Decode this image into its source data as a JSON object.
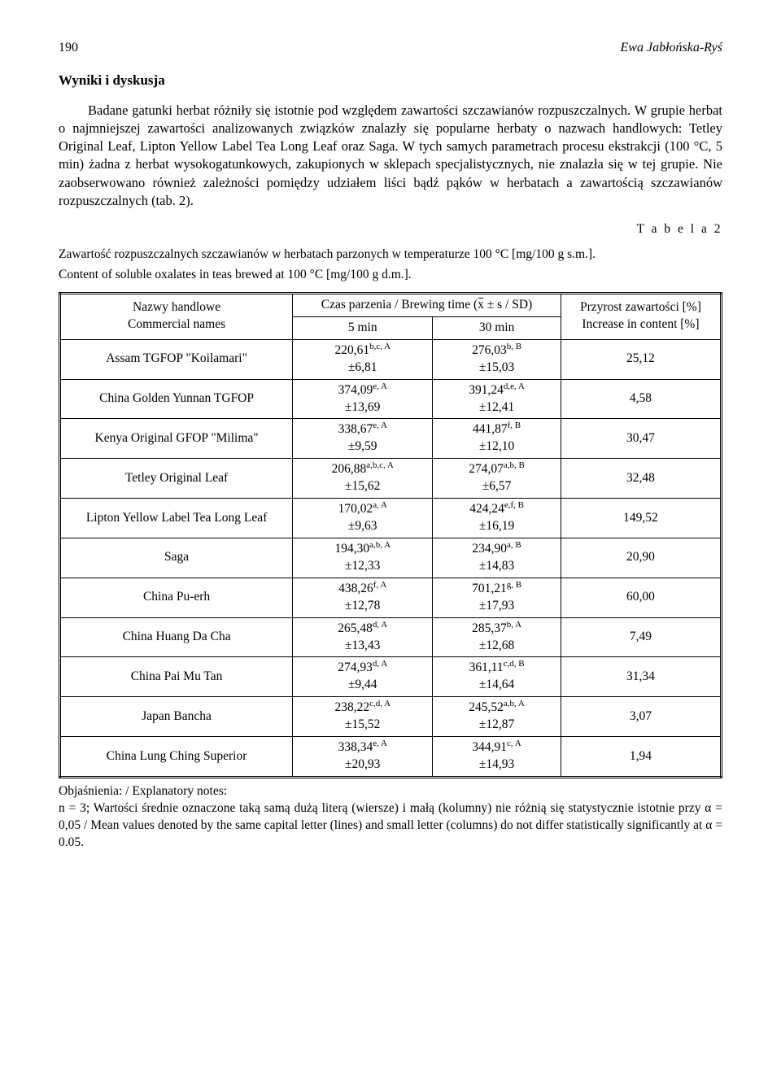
{
  "page_number": "190",
  "running_head": "Ewa Jabłońska-Ryś",
  "section_title": "Wyniki i dyskusja",
  "body_paragraph": "Badane gatunki herbat różniły się istotnie pod względem zawartości szczawianów rozpuszczalnych. W grupie herbat o najmniejszej zawartości analizowanych związków znalazły się popularne herbaty o nazwach handlowych: Tetley Original Leaf, Lipton Yellow Label Tea Long Leaf oraz Saga. W tych samych parametrach procesu ekstrakcji (100 °C, 5 min) żadna z herbat wysokogatunkowych, zakupionych w sklepach specjalistycznych, nie znalazła się w tej grupie. Nie zaobserwowano również zależności pomiędzy udziałem liści bądź pąków w herbatach a zawartością szczawianów rozpuszczalnych (tab. 2).",
  "table_label": "T a b e l a  2",
  "caption_pl": "Zawartość rozpuszczalnych szczawianów w herbatach parzonych w temperaturze 100 °C [mg/100 g s.m.].",
  "caption_en": "Content of soluble oxalates in teas brewed at 100 °C [mg/100 g d.m.].",
  "table": {
    "head": {
      "names_pl": "Nazwy handlowe",
      "names_en": "Commercial names",
      "brewing_label": "Czas parzenia / Brewing time (",
      "brewing_label_tail": " ± s / SD)",
      "col_5min": "5 min",
      "col_30min": "30 min",
      "increase_pl": "Przyrost zawartości [%]",
      "increase_en": "Increase in content [%]"
    },
    "rows": [
      {
        "name": "Assam TGFOP \"Koilamari\"",
        "v5": "220,61",
        "s5": "b,c, A",
        "sd5": "±6,81",
        "v30": "276,03",
        "s30": "b, B",
        "sd30": "±15,03",
        "inc": "25,12"
      },
      {
        "name": "China Golden Yunnan TGFOP",
        "v5": "374,09",
        "s5": "e, A",
        "sd5": "±13,69",
        "v30": "391,24",
        "s30": "d,e, A",
        "sd30": "±12,41",
        "inc": "4,58"
      },
      {
        "name": "Kenya Original GFOP \"Milima\"",
        "v5": "338,67",
        "s5": "e, A",
        "sd5": "±9,59",
        "v30": "441,87",
        "s30": "f, B",
        "sd30": "±12,10",
        "inc": "30,47"
      },
      {
        "name": "Tetley Original Leaf",
        "v5": "206,88",
        "s5": "a,b,c, A",
        "sd5": "±15,62",
        "v30": "274,07",
        "s30": "a,b, B",
        "sd30": "±6,57",
        "inc": "32,48"
      },
      {
        "name": "Lipton Yellow Label Tea Long Leaf",
        "v5": "170,02",
        "s5": "a, A",
        "sd5": "±9,63",
        "v30": "424,24",
        "s30": "e,f, B",
        "sd30": "±16,19",
        "inc": "149,52"
      },
      {
        "name": "Saga",
        "v5": "194,30",
        "s5": "a,b, A",
        "sd5": "±12,33",
        "v30": "234,90",
        "s30": "a, B",
        "sd30": "±14,83",
        "inc": "20,90"
      },
      {
        "name": "China Pu-erh",
        "v5": "438,26",
        "s5": "f, A",
        "sd5": "±12,78",
        "v30": "701,21",
        "s30": "g, B",
        "sd30": "±17,93",
        "inc": "60,00"
      },
      {
        "name": "China Huang Da Cha",
        "v5": "265,48",
        "s5": "d, A",
        "sd5": "±13,43",
        "v30": "285,37",
        "s30": "b, A",
        "sd30": "±12,68",
        "inc": "7,49"
      },
      {
        "name": "China Pai Mu Tan",
        "v5": "274,93",
        "s5": "d, A",
        "sd5": "±9,44",
        "v30": "361,11",
        "s30": "c,d, B",
        "sd30": "±14,64",
        "inc": "31,34"
      },
      {
        "name": "Japan Bancha",
        "v5": "238,22",
        "s5": "c,d, A",
        "sd5": "±15,52",
        "v30": "245,52",
        "s30": "a,b, A",
        "sd30": "±12,87",
        "inc": "3,07"
      },
      {
        "name": "China Lung Ching Superior",
        "v5": "338,34",
        "s5": "e, A",
        "sd5": "±20,93",
        "v30": "344,91",
        "s30": "c, A",
        "sd30": "±14,93",
        "inc": "1,94"
      }
    ]
  },
  "notes_label": "Objaśnienia: / Explanatory notes:",
  "notes_body": "n = 3; Wartości średnie oznaczone taką samą dużą literą (wiersze) i małą (kolumny) nie różnią się statystycznie istotnie przy α = 0,05 / Mean values denoted by the same capital letter (lines) and small letter (columns) do not differ statistically significantly at α = 0.05."
}
